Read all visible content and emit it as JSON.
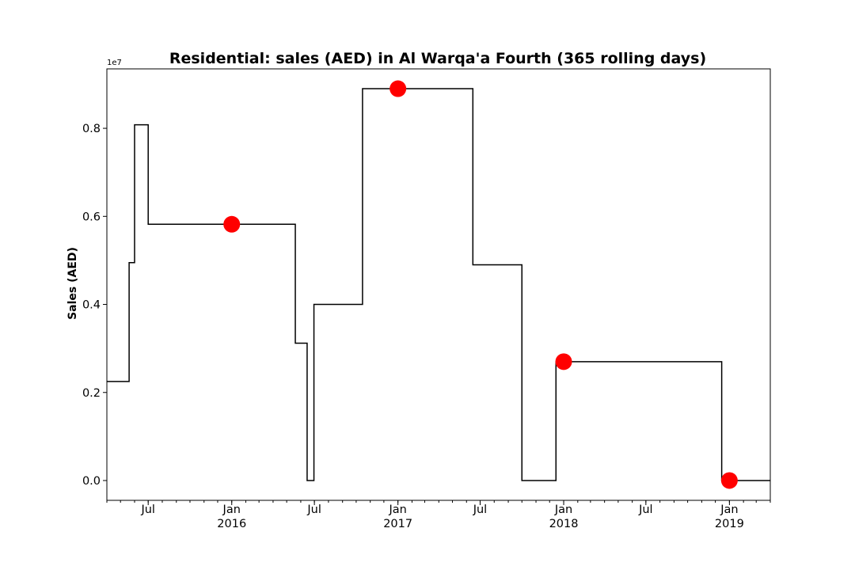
{
  "chart_data": {
    "type": "line",
    "title": "Residential: sales (AED) in Al Warqa'a Fourth (365 rolling days)",
    "xlabel": "",
    "ylabel": "Sales (AED)",
    "y_offset_label": "1e7",
    "y_scale": 10000000,
    "ylim": [
      -0.045,
      0.935
    ],
    "xlim": [
      "2015-04-01",
      "2019-04-01"
    ],
    "grid": false,
    "legend": "none",
    "colors": {
      "line": "#000000",
      "markers": "#ff0000"
    },
    "y_ticks": [
      {
        "value": 0.0,
        "label": "0.0"
      },
      {
        "value": 0.2,
        "label": "0.2"
      },
      {
        "value": 0.4,
        "label": "0.4"
      },
      {
        "value": 0.6,
        "label": "0.6"
      },
      {
        "value": 0.8,
        "label": "0.8"
      }
    ],
    "x_ticks": [
      {
        "date": "2015-07-01",
        "label": "Jul",
        "year": ""
      },
      {
        "date": "2016-01-01",
        "label": "Jan",
        "year": "2016"
      },
      {
        "date": "2016-07-01",
        "label": "Jul",
        "year": ""
      },
      {
        "date": "2017-01-01",
        "label": "Jan",
        "year": "2017"
      },
      {
        "date": "2017-07-01",
        "label": "Jul",
        "year": ""
      },
      {
        "date": "2018-01-01",
        "label": "Jan",
        "year": "2018"
      },
      {
        "date": "2018-07-01",
        "label": "Jul",
        "year": ""
      },
      {
        "date": "2019-01-01",
        "label": "Jan",
        "year": "2019"
      }
    ],
    "series": [
      {
        "style": "step",
        "points": [
          {
            "date": "2015-04-01",
            "value": 0.225
          },
          {
            "date": "2015-05-20",
            "value": 0.495
          },
          {
            "date": "2015-06-01",
            "value": 0.808
          },
          {
            "date": "2015-07-01",
            "value": 0.582
          },
          {
            "date": "2016-05-20",
            "value": 0.312
          },
          {
            "date": "2016-06-15",
            "value": 0.0
          },
          {
            "date": "2016-06-30",
            "value": 0.4
          },
          {
            "date": "2016-10-15",
            "value": 0.89
          },
          {
            "date": "2017-06-15",
            "value": 0.49
          },
          {
            "date": "2017-10-01",
            "value": 0.0
          },
          {
            "date": "2017-12-15",
            "value": 0.27
          },
          {
            "date": "2018-12-15",
            "value": 0.0
          },
          {
            "date": "2019-04-01",
            "value": 0.0
          }
        ]
      },
      {
        "style": "markers",
        "points": [
          {
            "date": "2016-01-01",
            "value": 0.582
          },
          {
            "date": "2017-01-01",
            "value": 0.89
          },
          {
            "date": "2018-01-01",
            "value": 0.27
          },
          {
            "date": "2019-01-01",
            "value": 0.0
          }
        ]
      }
    ]
  }
}
